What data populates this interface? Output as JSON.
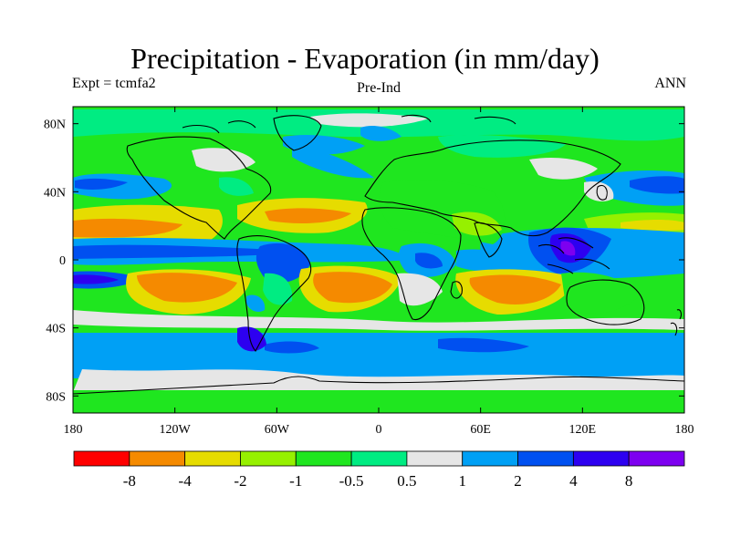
{
  "title": "Precipitation - Evaporation (in mm/day)",
  "subtitle_left": "Expt = tcmfa2",
  "subtitle_center": "Pre-Ind",
  "subtitle_right": "ANN",
  "axes": {
    "lat_labels": [
      "80N",
      "40N",
      "0",
      "40S",
      "80S"
    ],
    "lat_values": [
      80,
      40,
      0,
      -40,
      -80
    ],
    "lon_labels": [
      "180",
      "120W",
      "60W",
      "0",
      "60E",
      "120E",
      "180"
    ],
    "lon_values": [
      -180,
      -120,
      -60,
      0,
      60,
      120,
      180
    ],
    "lon_range": [
      -180,
      180
    ],
    "lat_range": [
      -90,
      90
    ]
  },
  "colorbar": {
    "colors": [
      "#ff0000",
      "#f58a00",
      "#e6dc00",
      "#96f000",
      "#1fe61f",
      "#00ec82",
      "#e6e6e6",
      "#00a0f5",
      "#0050f0",
      "#2d00f0",
      "#7d00f0"
    ],
    "labels": [
      "-8",
      "-4",
      "-2",
      "-1",
      "-0.5",
      "0.5",
      "1",
      "2",
      "4",
      "8"
    ]
  }
}
